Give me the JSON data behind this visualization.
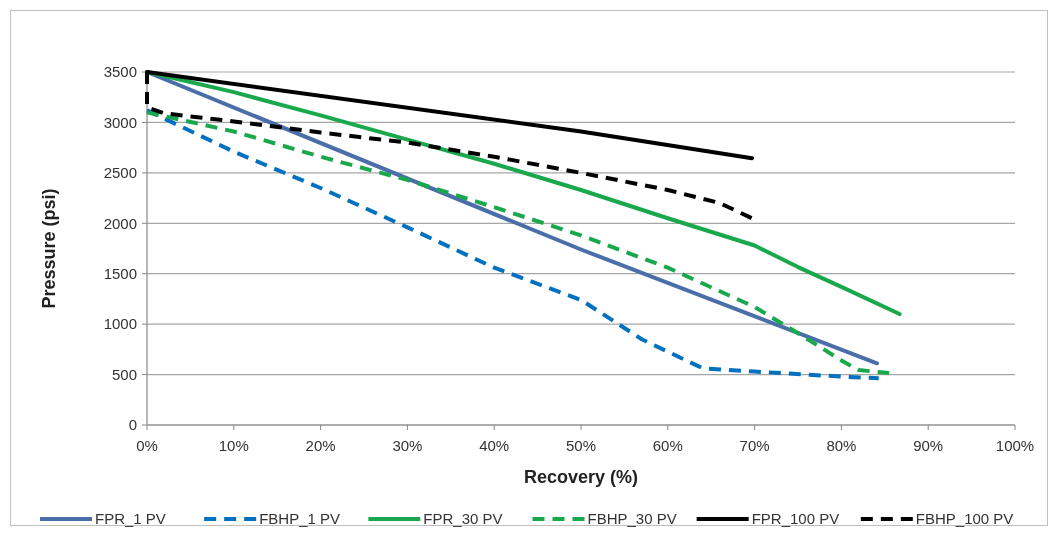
{
  "chart_data": {
    "type": "line",
    "xlabel": "Recovery (%)",
    "ylabel": "Pressure (psi)",
    "xlim": [
      0,
      100
    ],
    "xticks": [
      {
        "value": 0,
        "label": "0%"
      },
      {
        "value": 10,
        "label": "10%"
      },
      {
        "value": 20,
        "label": "20%"
      },
      {
        "value": 30,
        "label": "30%"
      },
      {
        "value": 40,
        "label": "40%"
      },
      {
        "value": 50,
        "label": "50%"
      },
      {
        "value": 60,
        "label": "60%"
      },
      {
        "value": 70,
        "label": "70%"
      },
      {
        "value": 80,
        "label": "80%"
      },
      {
        "value": 90,
        "label": "90%"
      },
      {
        "value": 100,
        "label": "100%"
      }
    ],
    "ylim": [
      0,
      3500
    ],
    "yticks": [
      0,
      500,
      1000,
      1500,
      2000,
      2500,
      3000,
      3500
    ],
    "grid": "y",
    "legend": "bottom",
    "marker": "none",
    "series": [
      {
        "name": "FPR_1 PV",
        "color": "#4a6ea9",
        "line_style": "solid",
        "x": [
          0,
          50,
          84.1
        ],
        "values": [
          3500,
          1740,
          612
        ]
      },
      {
        "name": "FBHP_1 PV",
        "color": "#0070c0",
        "line_style": "dashed",
        "x": [
          0,
          10,
          20,
          30,
          40,
          50,
          57,
          64,
          70,
          80,
          84.3
        ],
        "values": [
          3120,
          2710,
          2350,
          1960,
          1560,
          1240,
          850,
          563,
          530,
          480,
          463
        ]
      },
      {
        "name": "FPR_30 PV",
        "color": "#1aa84c",
        "line_style": "solid",
        "x": [
          0,
          10,
          20,
          30,
          40,
          50,
          60,
          70,
          75,
          80,
          86.7
        ],
        "values": [
          3500,
          3300,
          3070,
          2830,
          2590,
          2330,
          2050,
          1780,
          1566,
          1370,
          1100
        ]
      },
      {
        "name": "FBHP_30 PV",
        "color": "#1aa84c",
        "line_style": "dashed",
        "x": [
          0,
          10,
          20,
          30,
          40,
          50,
          60,
          70,
          75,
          80,
          82,
          85.5
        ],
        "values": [
          3100,
          2910,
          2660,
          2430,
          2160,
          1880,
          1560,
          1170,
          910,
          640,
          545,
          515
        ]
      },
      {
        "name": "FPR_100 PV",
        "color": "#000000",
        "line_style": "solid",
        "x": [
          0,
          50,
          69.7
        ],
        "values": [
          3500,
          2910,
          2645
        ]
      },
      {
        "name": "FBHP_100 PV",
        "color": "#000000",
        "line_style": "dashed",
        "x": [
          0,
          0,
          2,
          10,
          20,
          30,
          40,
          50,
          60,
          66,
          69.7
        ],
        "values": [
          3500,
          3150,
          3090,
          3010,
          2900,
          2800,
          2660,
          2500,
          2330,
          2200,
          2050
        ]
      }
    ]
  }
}
